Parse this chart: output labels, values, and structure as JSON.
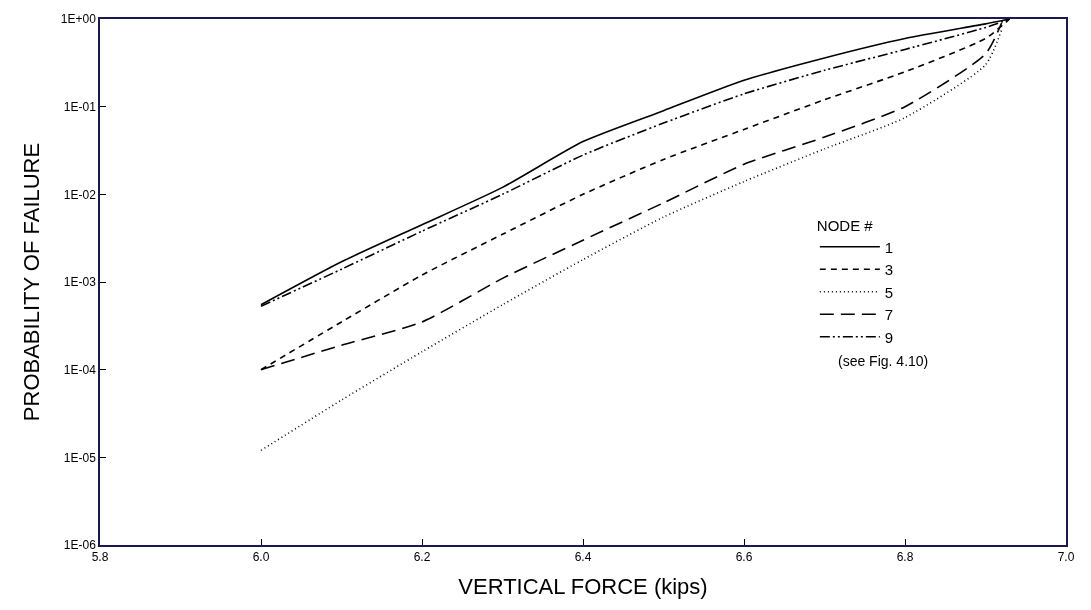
{
  "chart_data": {
    "type": "line",
    "xlabel": "VERTICAL FORCE (kips)",
    "ylabel": "PROBABILITY OF FAILURE",
    "legend_title": "NODE #",
    "legend": "right",
    "log": "y",
    "marker": "none",
    "xlim": [
      5.8,
      7.0
    ],
    "xticks": [
      {
        "value": 5.8,
        "label": "5.8"
      },
      {
        "value": 6.0,
        "label": "6.0"
      },
      {
        "value": 6.2,
        "label": "6.2"
      },
      {
        "value": 6.4,
        "label": "6.4"
      },
      {
        "value": 6.6,
        "label": "6.6"
      },
      {
        "value": 6.8,
        "label": "6.8"
      },
      {
        "value": 7.0,
        "label": "7.0"
      }
    ],
    "ylim": [
      1e-06,
      1
    ],
    "yticks": [
      {
        "value": 1e-06,
        "label": "1E-06"
      },
      {
        "value": 1e-05,
        "label": "1E-05"
      },
      {
        "value": 0.0001,
        "label": "1E-04"
      },
      {
        "value": 0.001,
        "label": "1E-03"
      },
      {
        "value": 0.01,
        "label": "1E-02"
      },
      {
        "value": 0.1,
        "label": "1E-01"
      },
      {
        "value": 1,
        "label": "1E+00"
      }
    ],
    "annotations": [
      "(see Fig. 4.10)"
    ],
    "series": [
      {
        "name": "1",
        "color": "#000000",
        "line_style": "solid",
        "x": [
          6.0,
          6.1,
          6.2,
          6.3,
          6.4,
          6.5,
          6.6,
          6.7,
          6.8,
          6.9,
          6.93
        ],
        "values": [
          0.00055,
          0.0017,
          0.0045,
          0.012,
          0.04,
          0.09,
          0.2,
          0.36,
          0.6,
          0.88,
          1
        ]
      },
      {
        "name": "3",
        "color": "#000000",
        "line_style": "dashed",
        "x": [
          6.0,
          6.1,
          6.2,
          6.3,
          6.4,
          6.5,
          6.6,
          6.7,
          6.8,
          6.9,
          6.93
        ],
        "values": [
          0.0001,
          0.00035,
          0.0012,
          0.0035,
          0.01,
          0.025,
          0.055,
          0.12,
          0.25,
          0.6,
          1
        ]
      },
      {
        "name": "5",
        "color": "#000000",
        "line_style": "dotted",
        "x": [
          6.0,
          6.1,
          6.2,
          6.3,
          6.4,
          6.5,
          6.6,
          6.7,
          6.8,
          6.9,
          6.92
        ],
        "values": [
          1.2e-05,
          4.5e-05,
          0.00016,
          0.00055,
          0.0018,
          0.0055,
          0.014,
          0.033,
          0.075,
          0.3,
          0.75
        ]
      },
      {
        "name": "7",
        "color": "#000000",
        "line_style": "longdashed",
        "x": [
          6.0,
          6.1,
          6.2,
          6.3,
          6.4,
          6.5,
          6.6,
          6.7,
          6.8,
          6.9,
          6.92
        ],
        "values": [
          0.0001,
          0.00019,
          0.00035,
          0.0011,
          0.003,
          0.008,
          0.022,
          0.045,
          0.1,
          0.4,
          0.9
        ]
      },
      {
        "name": "9",
        "color": "#000000",
        "line_style": "dashdotdot",
        "x": [
          6.0,
          6.1,
          6.2,
          6.3,
          6.4,
          6.5,
          6.6,
          6.7,
          6.8,
          6.9,
          6.93
        ],
        "values": [
          0.00053,
          0.0014,
          0.0038,
          0.01,
          0.028,
          0.065,
          0.14,
          0.26,
          0.45,
          0.8,
          1
        ]
      }
    ]
  }
}
